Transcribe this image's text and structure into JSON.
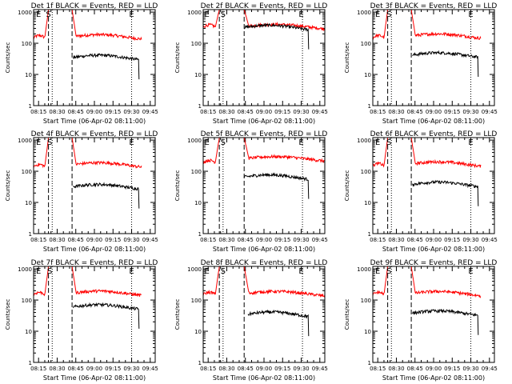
{
  "figure": {
    "ylabel": "Counts/sec",
    "xlabel": "Start Time (06-Apr-02 08:11:00)",
    "title_suffix": "BLACK = Events, RED = LLD",
    "colors": {
      "events": "#000000",
      "lld": "#ff0000",
      "axes": "#000000"
    }
  },
  "chart_data": [
    {
      "type": "line",
      "detector": "Det 1f",
      "title": "Det 1f BLACK = Events, RED = LLD",
      "xlabel": "Start Time (06-Apr-02 08:11:00)",
      "ylabel": "Counts/sec",
      "x_ticks": [
        "08:15",
        "08:30",
        "08:45",
        "09:00",
        "09:15",
        "09:30",
        "09:45"
      ],
      "y_ticks": [
        "1",
        "10",
        "100",
        "1000"
      ],
      "ylim": [
        1,
        1200
      ],
      "yscale": "log",
      "markers": [
        {
          "label": "E",
          "time": "08:15"
        },
        {
          "label": "S",
          "time": "08:23"
        },
        {
          "label": "E",
          "time": "09:30"
        }
      ],
      "dashed_lines": [
        "08:23",
        "08:42"
      ],
      "dotted_lines": [
        "08:26",
        "09:30"
      ],
      "series": [
        {
          "name": "LLD",
          "color": "red",
          "segments": [
            {
              "start": "08:11",
              "end": "08:23",
              "level": 150
            },
            {
              "start": "08:42",
              "end": "09:38",
              "level": 160
            }
          ],
          "peak": 1200
        },
        {
          "name": "Events",
          "color": "black",
          "segments": [
            {
              "start": "08:43",
              "end": "09:36",
              "level": 35
            }
          ]
        }
      ]
    },
    {
      "type": "line",
      "detector": "Det 2f",
      "title": "Det 2f BLACK = Events, RED = LLD",
      "xlabel": "Start Time (06-Apr-02 08:11:00)",
      "ylabel": "Counts/sec",
      "x_ticks": [
        "08:15",
        "08:30",
        "08:45",
        "09:00",
        "09:15",
        "09:30",
        "09:45"
      ],
      "y_ticks": [
        "1",
        "10",
        "100",
        "1000"
      ],
      "ylim": [
        1,
        1200
      ],
      "yscale": "log",
      "markers": [
        {
          "label": "E",
          "time": "08:14"
        },
        {
          "label": "S",
          "time": "08:27"
        },
        {
          "label": "E",
          "time": "09:30"
        }
      ],
      "dashed_lines": [
        "08:24",
        "08:44"
      ],
      "dotted_lines": [
        "08:27",
        "09:31"
      ],
      "series": [
        {
          "name": "LLD",
          "color": "red",
          "segments": [
            {
              "start": "08:11",
              "end": "08:24",
              "level": 330
            },
            {
              "start": "08:44",
              "end": "09:49",
              "level": 340
            }
          ],
          "peak": 1200
        },
        {
          "name": "Events",
          "color": "black",
          "segments": [
            {
              "start": "08:44",
              "end": "09:36",
              "level": 320
            }
          ]
        }
      ]
    },
    {
      "type": "line",
      "detector": "Det 3f",
      "title": "Det 3f BLACK = Events, RED = LLD",
      "xlabel": "Start Time (06-Apr-02 08:11:00)",
      "ylabel": "Counts/sec",
      "x_ticks": [
        "08:15",
        "08:30",
        "08:45",
        "09:00",
        "09:15",
        "09:30",
        "09:45"
      ],
      "y_ticks": [
        "1",
        "10",
        "100",
        "1000"
      ],
      "ylim": [
        1,
        1200
      ],
      "yscale": "log",
      "markers": [
        {
          "label": "E",
          "time": "08:15"
        },
        {
          "label": "S",
          "time": "08:24"
        },
        {
          "label": "E",
          "time": "09:30"
        }
      ],
      "dashed_lines": [
        "08:23",
        "08:42"
      ],
      "dotted_lines": [
        "08:26",
        "09:30"
      ],
      "series": [
        {
          "name": "LLD",
          "color": "red",
          "segments": [
            {
              "start": "08:11",
              "end": "08:23",
              "level": 150
            },
            {
              "start": "08:42",
              "end": "09:38",
              "level": 170
            }
          ],
          "peak": 1200
        },
        {
          "name": "Events",
          "color": "black",
          "segments": [
            {
              "start": "08:43",
              "end": "09:36",
              "level": 42
            }
          ]
        }
      ]
    },
    {
      "type": "line",
      "detector": "Det 4f",
      "title": "Det 4f BLACK = Events, RED = LLD",
      "xlabel": "Start Time (06-Apr-02 08:11:00)",
      "ylabel": "Counts/sec",
      "x_ticks": [
        "08:15",
        "08:30",
        "08:45",
        "09:00",
        "09:15",
        "09:30",
        "09:45"
      ],
      "y_ticks": [
        "1",
        "10",
        "100",
        "1000"
      ],
      "ylim": [
        1,
        1200
      ],
      "yscale": "log",
      "markers": [
        {
          "label": "E",
          "time": "08:15"
        },
        {
          "label": "S",
          "time": "08:24"
        },
        {
          "label": "E",
          "time": "09:30"
        }
      ],
      "dashed_lines": [
        "08:23",
        "08:42"
      ],
      "dotted_lines": [
        "08:26",
        "09:30"
      ],
      "series": [
        {
          "name": "LLD",
          "color": "red",
          "segments": [
            {
              "start": "08:11",
              "end": "08:23",
              "level": 140
            },
            {
              "start": "08:42",
              "end": "09:38",
              "level": 160
            }
          ],
          "peak": 1200
        },
        {
          "name": "Events",
          "color": "black",
          "segments": [
            {
              "start": "08:43",
              "end": "09:36",
              "level": 32
            }
          ]
        }
      ]
    },
    {
      "type": "line",
      "detector": "Det 5f",
      "title": "Det 5f BLACK = Events, RED = LLD",
      "xlabel": "Start Time (06-Apr-02 08:11:00)",
      "ylabel": "Counts/sec",
      "x_ticks": [
        "08:15",
        "08:30",
        "08:45",
        "09:00",
        "09:15",
        "09:30",
        "09:45"
      ],
      "y_ticks": [
        "1",
        "10",
        "100",
        "1000"
      ],
      "ylim": [
        1,
        1200
      ],
      "yscale": "log",
      "markers": [
        {
          "label": "E",
          "time": "08:14"
        },
        {
          "label": "S",
          "time": "08:27"
        },
        {
          "label": "E",
          "time": "09:30"
        }
      ],
      "dashed_lines": [
        "08:24",
        "08:44"
      ],
      "dotted_lines": [
        "08:27",
        "09:31"
      ],
      "series": [
        {
          "name": "LLD",
          "color": "red",
          "segments": [
            {
              "start": "08:11",
              "end": "08:24",
              "level": 190
            },
            {
              "start": "08:44",
              "end": "09:49",
              "level": 250
            }
          ],
          "peak": 1200
        },
        {
          "name": "Events",
          "color": "black",
          "segments": [
            {
              "start": "08:44",
              "end": "09:36",
              "level": 65
            }
          ]
        }
      ]
    },
    {
      "type": "line",
      "detector": "Det 6f",
      "title": "Det 6f BLACK = Events, RED = LLD",
      "xlabel": "Start Time (06-Apr-02 08:11:00)",
      "ylabel": "Counts/sec",
      "x_ticks": [
        "08:15",
        "08:30",
        "08:45",
        "09:00",
        "09:15",
        "09:30",
        "09:45"
      ],
      "y_ticks": [
        "1",
        "10",
        "100",
        "1000"
      ],
      "ylim": [
        1,
        1200
      ],
      "yscale": "log",
      "markers": [
        {
          "label": "E",
          "time": "08:15"
        },
        {
          "label": "S",
          "time": "08:24"
        },
        {
          "label": "E",
          "time": "09:30"
        }
      ],
      "dashed_lines": [
        "08:23",
        "08:42"
      ],
      "dotted_lines": [
        "08:26",
        "09:30"
      ],
      "series": [
        {
          "name": "LLD",
          "color": "red",
          "segments": [
            {
              "start": "08:11",
              "end": "08:23",
              "level": 150
            },
            {
              "start": "08:42",
              "end": "09:38",
              "level": 170
            }
          ],
          "peak": 1200
        },
        {
          "name": "Events",
          "color": "black",
          "segments": [
            {
              "start": "08:43",
              "end": "09:36",
              "level": 38
            }
          ]
        }
      ]
    },
    {
      "type": "line",
      "detector": "Det 7f",
      "title": "Det 7f BLACK = Events, RED = LLD",
      "xlabel": "Start Time (06-Apr-02 08:11:00)",
      "ylabel": "Counts/sec",
      "x_ticks": [
        "08:15",
        "08:30",
        "08:45",
        "09:00",
        "09:15",
        "09:30",
        "09:45"
      ],
      "y_ticks": [
        "1",
        "10",
        "100",
        "1000"
      ],
      "ylim": [
        1,
        1200
      ],
      "yscale": "log",
      "markers": [
        {
          "label": "E",
          "time": "08:15"
        },
        {
          "label": "S",
          "time": "08:24"
        },
        {
          "label": "E",
          "time": "09:30"
        }
      ],
      "dashed_lines": [
        "08:23",
        "08:42"
      ],
      "dotted_lines": [
        "08:26",
        "09:30"
      ],
      "series": [
        {
          "name": "LLD",
          "color": "red",
          "segments": [
            {
              "start": "08:11",
              "end": "08:23",
              "level": 150
            },
            {
              "start": "08:42",
              "end": "09:38",
              "level": 165
            }
          ],
          "peak": 1200
        },
        {
          "name": "Events",
          "color": "black",
          "segments": [
            {
              "start": "08:43",
              "end": "09:36",
              "level": 60
            }
          ]
        }
      ]
    },
    {
      "type": "line",
      "detector": "Det 8f",
      "title": "Det 8f BLACK = Events, RED = LLD",
      "xlabel": "Start Time (06-Apr-02 08:11:00)",
      "ylabel": "Counts/sec",
      "x_ticks": [
        "08:15",
        "08:30",
        "08:45",
        "09:00",
        "09:15",
        "09:30",
        "09:45"
      ],
      "y_ticks": [
        "1",
        "10",
        "100",
        "1000"
      ],
      "ylim": [
        1,
        1200
      ],
      "yscale": "log",
      "markers": [
        {
          "label": "E",
          "time": "08:14"
        },
        {
          "label": "S",
          "time": "08:27"
        },
        {
          "label": "E",
          "time": "09:30"
        }
      ],
      "dashed_lines": [
        "08:24",
        "08:44"
      ],
      "dotted_lines": [
        "08:27",
        "09:31"
      ],
      "series": [
        {
          "name": "LLD",
          "color": "red",
          "segments": [
            {
              "start": "08:11",
              "end": "08:24",
              "level": 150
            },
            {
              "start": "08:44",
              "end": "09:49",
              "level": 160
            }
          ],
          "peak": 1200
        },
        {
          "name": "Events",
          "color": "black",
          "segments": [
            {
              "start": "08:47",
              "end": "09:36",
              "level": 35
            }
          ]
        }
      ]
    },
    {
      "type": "line",
      "detector": "Det 9f",
      "title": "Det 9f BLACK = Events, RED = LLD",
      "xlabel": "Start Time (06-Apr-02 08:11:00)",
      "ylabel": "Counts/sec",
      "x_ticks": [
        "08:15",
        "08:30",
        "08:45",
        "09:00",
        "09:15",
        "09:30",
        "09:45"
      ],
      "y_ticks": [
        "1",
        "10",
        "100",
        "1000"
      ],
      "ylim": [
        1,
        1200
      ],
      "yscale": "log",
      "markers": [
        {
          "label": "E",
          "time": "08:15"
        },
        {
          "label": "S",
          "time": "08:24"
        },
        {
          "label": "E",
          "time": "09:30"
        }
      ],
      "dashed_lines": [
        "08:23",
        "08:42"
      ],
      "dotted_lines": [
        "08:26",
        "09:30"
      ],
      "series": [
        {
          "name": "LLD",
          "color": "red",
          "segments": [
            {
              "start": "08:11",
              "end": "08:23",
              "level": 150
            },
            {
              "start": "08:42",
              "end": "09:38",
              "level": 160
            }
          ],
          "peak": 1200
        },
        {
          "name": "Events",
          "color": "black",
          "segments": [
            {
              "start": "08:43",
              "end": "09:36",
              "level": 38
            }
          ]
        }
      ]
    }
  ]
}
